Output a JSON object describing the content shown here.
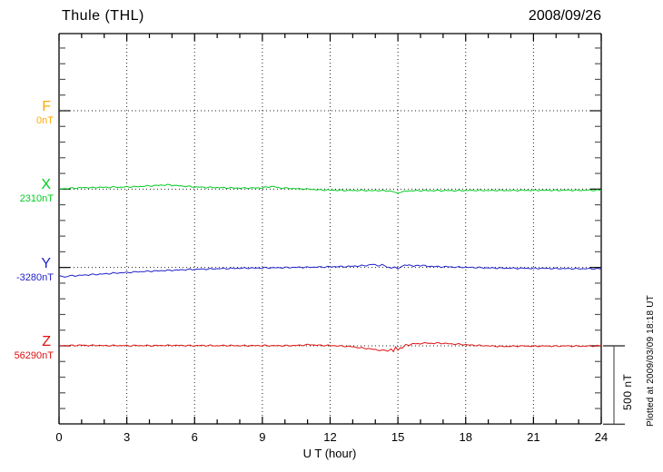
{
  "chart_data": {
    "type": "line",
    "title": "Thule (THL)",
    "date": "2008/09/26",
    "xlabel": "U T (hour)",
    "x_unit": "hour",
    "xlim": [
      0,
      24
    ],
    "x_ticks": [
      0,
      3,
      6,
      9,
      12,
      15,
      18,
      21,
      24
    ],
    "grid_hours": [
      3,
      6,
      9,
      12,
      15,
      18,
      21
    ],
    "grid_style": "dotted",
    "baseline_spacing_nT": 500,
    "scale_bar": {
      "label": "500 nT",
      "value_nT": 500
    },
    "plotted_at": "Plotted at 2009/03/09 18:18 UT",
    "series": [
      {
        "name": "F",
        "baseline_label": "0nT",
        "color": "#FFAA00",
        "points": []
      },
      {
        "name": "X",
        "baseline_label": "2310nT",
        "color": "#00CC22",
        "points": [
          [
            0,
            0
          ],
          [
            0.3,
            3
          ],
          [
            0.6,
            6
          ],
          [
            0.9,
            8
          ],
          [
            1.2,
            10
          ],
          [
            1.5,
            9
          ],
          [
            1.8,
            12
          ],
          [
            2.1,
            11
          ],
          [
            2.4,
            13
          ],
          [
            2.7,
            12
          ],
          [
            3.0,
            14
          ],
          [
            3.3,
            15
          ],
          [
            3.6,
            17
          ],
          [
            3.9,
            20
          ],
          [
            4.2,
            22
          ],
          [
            4.5,
            25
          ],
          [
            4.8,
            27
          ],
          [
            5.1,
            24
          ],
          [
            5.4,
            20
          ],
          [
            5.7,
            17
          ],
          [
            6.0,
            14
          ],
          [
            6.3,
            12
          ],
          [
            6.6,
            11
          ],
          [
            6.9,
            10
          ],
          [
            7.2,
            9
          ],
          [
            7.5,
            8
          ],
          [
            7.8,
            7
          ],
          [
            8.1,
            6
          ],
          [
            8.4,
            7
          ],
          [
            8.7,
            7
          ],
          [
            9.0,
            8
          ],
          [
            9.3,
            15
          ],
          [
            9.5,
            17
          ],
          [
            9.7,
            9
          ],
          [
            10.0,
            6
          ],
          [
            10.3,
            4
          ],
          [
            10.6,
            2
          ],
          [
            11.0,
            0
          ],
          [
            11.4,
            -4
          ],
          [
            11.8,
            -6
          ],
          [
            12.2,
            -7
          ],
          [
            12.6,
            -8
          ],
          [
            13.0,
            -9
          ],
          [
            13.4,
            -8
          ],
          [
            13.8,
            -10
          ],
          [
            14.2,
            -9
          ],
          [
            14.6,
            -12
          ],
          [
            14.85,
            -22
          ],
          [
            15.0,
            -25
          ],
          [
            15.15,
            -20
          ],
          [
            15.3,
            -14
          ],
          [
            15.5,
            -11
          ],
          [
            15.8,
            -10
          ],
          [
            16.1,
            -9
          ],
          [
            16.5,
            -10
          ],
          [
            17.0,
            -9
          ],
          [
            17.5,
            -10
          ],
          [
            18.0,
            -9
          ],
          [
            18.5,
            -8
          ],
          [
            19.0,
            -9
          ],
          [
            19.5,
            -8
          ],
          [
            20.0,
            -9
          ],
          [
            20.5,
            -8
          ],
          [
            21.0,
            -8
          ],
          [
            21.5,
            -7
          ],
          [
            22.0,
            -8
          ],
          [
            22.5,
            -7
          ],
          [
            23.0,
            -8
          ],
          [
            23.5,
            -7
          ],
          [
            24,
            -7
          ]
        ]
      },
      {
        "name": "Y",
        "baseline_label": "-3280nT",
        "color": "#2222CC",
        "points": [
          [
            0,
            -55
          ],
          [
            0.25,
            -57
          ],
          [
            0.5,
            -54
          ],
          [
            0.8,
            -52
          ],
          [
            1.1,
            -49
          ],
          [
            1.4,
            -46
          ],
          [
            1.7,
            -44
          ],
          [
            2.0,
            -41
          ],
          [
            2.3,
            -38
          ],
          [
            2.6,
            -35
          ],
          [
            3.0,
            -32
          ],
          [
            3.3,
            -29
          ],
          [
            3.6,
            -27
          ],
          [
            4.0,
            -24
          ],
          [
            4.3,
            -22
          ],
          [
            4.6,
            -20
          ],
          [
            5.0,
            -18
          ],
          [
            5.3,
            -16
          ],
          [
            5.6,
            -14
          ],
          [
            6.0,
            -12
          ],
          [
            6.3,
            -11
          ],
          [
            6.6,
            -10
          ],
          [
            7.0,
            -8
          ],
          [
            7.3,
            -7
          ],
          [
            7.6,
            -6
          ],
          [
            8.0,
            -5
          ],
          [
            8.3,
            -4
          ],
          [
            8.6,
            -4
          ],
          [
            9.0,
            -3
          ],
          [
            9.3,
            -2
          ],
          [
            9.6,
            -2
          ],
          [
            10.0,
            -1
          ],
          [
            10.3,
            0
          ],
          [
            10.6,
            1
          ],
          [
            11.0,
            1
          ],
          [
            11.3,
            2
          ],
          [
            11.6,
            3
          ],
          [
            12.0,
            4
          ],
          [
            12.3,
            6
          ],
          [
            12.6,
            5
          ],
          [
            13.0,
            8
          ],
          [
            13.3,
            10
          ],
          [
            13.6,
            13
          ],
          [
            13.9,
            20
          ],
          [
            14.1,
            12
          ],
          [
            14.3,
            16
          ],
          [
            14.5,
            6
          ],
          [
            14.7,
            -5
          ],
          [
            14.85,
            1
          ],
          [
            15.0,
            -7
          ],
          [
            15.15,
            5
          ],
          [
            15.3,
            13
          ],
          [
            15.5,
            17
          ],
          [
            15.7,
            8
          ],
          [
            15.9,
            12
          ],
          [
            16.1,
            15
          ],
          [
            16.3,
            6
          ],
          [
            16.5,
            8
          ],
          [
            16.8,
            4
          ],
          [
            17.1,
            5
          ],
          [
            17.4,
            3
          ],
          [
            17.7,
            2
          ],
          [
            18.0,
            1
          ],
          [
            18.4,
            0
          ],
          [
            18.8,
            -2
          ],
          [
            19.2,
            -3
          ],
          [
            19.6,
            -4
          ],
          [
            20.0,
            -5
          ],
          [
            20.5,
            -5
          ],
          [
            21.0,
            -6
          ],
          [
            21.5,
            -6
          ],
          [
            22.0,
            -7
          ],
          [
            22.5,
            -7
          ],
          [
            23.0,
            -8
          ],
          [
            23.5,
            -8
          ],
          [
            24,
            -9
          ]
        ]
      },
      {
        "name": "Z",
        "baseline_label": "56290nT",
        "color": "#DD1111",
        "points": [
          [
            0,
            0
          ],
          [
            0.5,
            2
          ],
          [
            1.0,
            4
          ],
          [
            1.3,
            2
          ],
          [
            1.7,
            3
          ],
          [
            2.0,
            1
          ],
          [
            2.5,
            2
          ],
          [
            3.0,
            1
          ],
          [
            3.5,
            2
          ],
          [
            4.0,
            1
          ],
          [
            4.5,
            2
          ],
          [
            5.0,
            3
          ],
          [
            5.5,
            2
          ],
          [
            6.0,
            1
          ],
          [
            6.5,
            2
          ],
          [
            7.0,
            1
          ],
          [
            7.5,
            2
          ],
          [
            8.0,
            1
          ],
          [
            8.5,
            1
          ],
          [
            9.0,
            2
          ],
          [
            9.5,
            1
          ],
          [
            10.0,
            1
          ],
          [
            10.4,
            2
          ],
          [
            10.8,
            4
          ],
          [
            11.1,
            8
          ],
          [
            11.4,
            4
          ],
          [
            11.7,
            3
          ],
          [
            12.0,
            2
          ],
          [
            12.3,
            0
          ],
          [
            12.7,
            -3
          ],
          [
            13.0,
            -6
          ],
          [
            13.3,
            -12
          ],
          [
            13.7,
            -18
          ],
          [
            14.0,
            -24
          ],
          [
            14.3,
            -30
          ],
          [
            14.55,
            -33
          ],
          [
            14.7,
            -20
          ],
          [
            14.8,
            -36
          ],
          [
            14.9,
            -10
          ],
          [
            15.0,
            -28
          ],
          [
            15.1,
            -8
          ],
          [
            15.2,
            -16
          ],
          [
            15.35,
            6
          ],
          [
            15.5,
            2
          ],
          [
            15.65,
            14
          ],
          [
            15.8,
            10
          ],
          [
            16.0,
            16
          ],
          [
            16.2,
            18
          ],
          [
            16.5,
            16
          ],
          [
            16.8,
            17
          ],
          [
            17.1,
            15
          ],
          [
            17.4,
            12
          ],
          [
            17.7,
            10
          ],
          [
            18.0,
            7
          ],
          [
            18.3,
            4
          ],
          [
            18.6,
            2
          ],
          [
            19.0,
            0
          ],
          [
            19.4,
            -3
          ],
          [
            19.8,
            -4
          ],
          [
            20.2,
            -2
          ],
          [
            20.6,
            -1
          ],
          [
            21.0,
            -2
          ],
          [
            21.5,
            -1
          ],
          [
            22.0,
            -2
          ],
          [
            22.5,
            -1
          ],
          [
            23.0,
            -2
          ],
          [
            23.5,
            -1
          ],
          [
            24,
            0
          ]
        ]
      }
    ]
  },
  "colors": {
    "frame": "#000000",
    "grid": "#222222",
    "minor_tick": "#555555",
    "scale_bar_line": "#999999",
    "scale_bar_cap": "#444444"
  }
}
